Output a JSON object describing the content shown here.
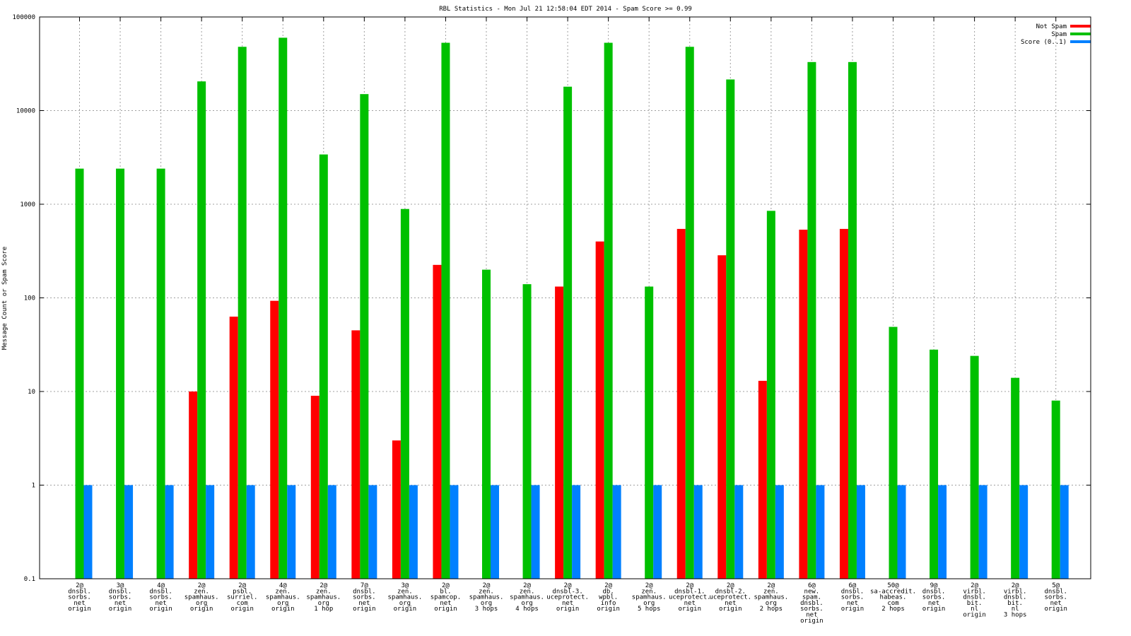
{
  "chart_data": {
    "type": "bar",
    "title": "RBL Statistics - Mon Jul 21 12:58:04 EDT 2014 - Spam Score >= 0.99",
    "xlabel": "",
    "ylabel": "Message Count or Spam Score",
    "yscale": "log",
    "ylim": [
      0.1,
      100000
    ],
    "yticks": [
      "0.1",
      "1",
      "10",
      "100",
      "1000",
      "10000",
      "100000"
    ],
    "ytick_values": [
      0.1,
      1,
      10,
      100,
      1000,
      10000,
      100000
    ],
    "grid": true,
    "legend_position": "top-right",
    "categories": [
      [
        "2@",
        "dnsbl.",
        "sorbs.",
        "net",
        "origin"
      ],
      [
        "3@",
        "dnsbl.",
        "sorbs.",
        "net",
        "origin"
      ],
      [
        "4@",
        "dnsbl.",
        "sorbs.",
        "net",
        "origin"
      ],
      [
        "2@",
        "zen.",
        "spamhaus.",
        "org",
        "origin"
      ],
      [
        "2@",
        "psbl.",
        "surriel.",
        "com",
        "origin"
      ],
      [
        "4@",
        "zen.",
        "spamhaus.",
        "org",
        "origin"
      ],
      [
        "2@",
        "zen.",
        "spamhaus.",
        "org",
        "1 hop"
      ],
      [
        "7@",
        "dnsbl.",
        "sorbs.",
        "net",
        "origin"
      ],
      [
        "3@",
        "zen.",
        "spamhaus.",
        "org",
        "origin"
      ],
      [
        "2@",
        "bl.",
        "spamcop.",
        "net",
        "origin"
      ],
      [
        "2@",
        "zen.",
        "spamhaus.",
        "org",
        "3 hops"
      ],
      [
        "2@",
        "zen.",
        "spamhaus.",
        "org",
        "4 hops"
      ],
      [
        "2@",
        "dnsbl-3.",
        "uceprotect.",
        "net",
        "origin"
      ],
      [
        "2@",
        "db.",
        "wpbl.",
        "info",
        "origin"
      ],
      [
        "2@",
        "zen.",
        "spamhaus.",
        "org",
        "5 hops"
      ],
      [
        "2@",
        "dnsbl-1.",
        "uceprotect.",
        "net",
        "origin"
      ],
      [
        "2@",
        "dnsbl-2.",
        "uceprotect.",
        "net",
        "origin"
      ],
      [
        "2@",
        "zen.",
        "spamhaus.",
        "org",
        "2 hops"
      ],
      [
        "6@",
        "new.",
        "spam.",
        "dnsbl.",
        "sorbs.",
        "net",
        "origin"
      ],
      [
        "6@",
        "dnsbl.",
        "sorbs.",
        "net",
        "origin"
      ],
      [
        "50@",
        "sa-accredit.",
        "habeas.",
        "com",
        "2 hops"
      ],
      [
        "9@",
        "dnsbl.",
        "sorbs.",
        "net",
        "origin"
      ],
      [
        "2@",
        "virbl.",
        "dnsbl.",
        "bit.",
        "nl",
        "origin"
      ],
      [
        "2@",
        "virbl.",
        "dnsbl.",
        "bit.",
        "nl",
        "3 hops"
      ],
      [
        "5@",
        "dnsbl.",
        "sorbs.",
        "net",
        "origin"
      ]
    ],
    "series": [
      {
        "name": "Not Spam",
        "color": "#ff0000",
        "values": [
          0,
          0,
          0,
          10,
          63,
          93,
          9,
          45,
          3,
          225,
          0,
          0,
          132,
          400,
          0,
          545,
          285,
          13,
          535,
          545,
          0,
          0,
          0,
          0,
          0
        ]
      },
      {
        "name": "Spam",
        "color": "#00c000",
        "values": [
          2400,
          2400,
          2400,
          20500,
          48000,
          60000,
          3400,
          15000,
          890,
          53000,
          200,
          140,
          18000,
          53000,
          132,
          48000,
          21500,
          850,
          33000,
          33000,
          49,
          28,
          24,
          14,
          8
        ]
      },
      {
        "name": "Score (0..1)",
        "color": "#0080ff",
        "values": [
          1,
          1,
          1,
          1,
          1,
          1,
          1,
          1,
          1,
          1,
          1,
          1,
          1,
          1,
          1,
          1,
          1,
          1,
          1,
          1,
          1,
          1,
          1,
          1,
          1
        ]
      }
    ]
  }
}
